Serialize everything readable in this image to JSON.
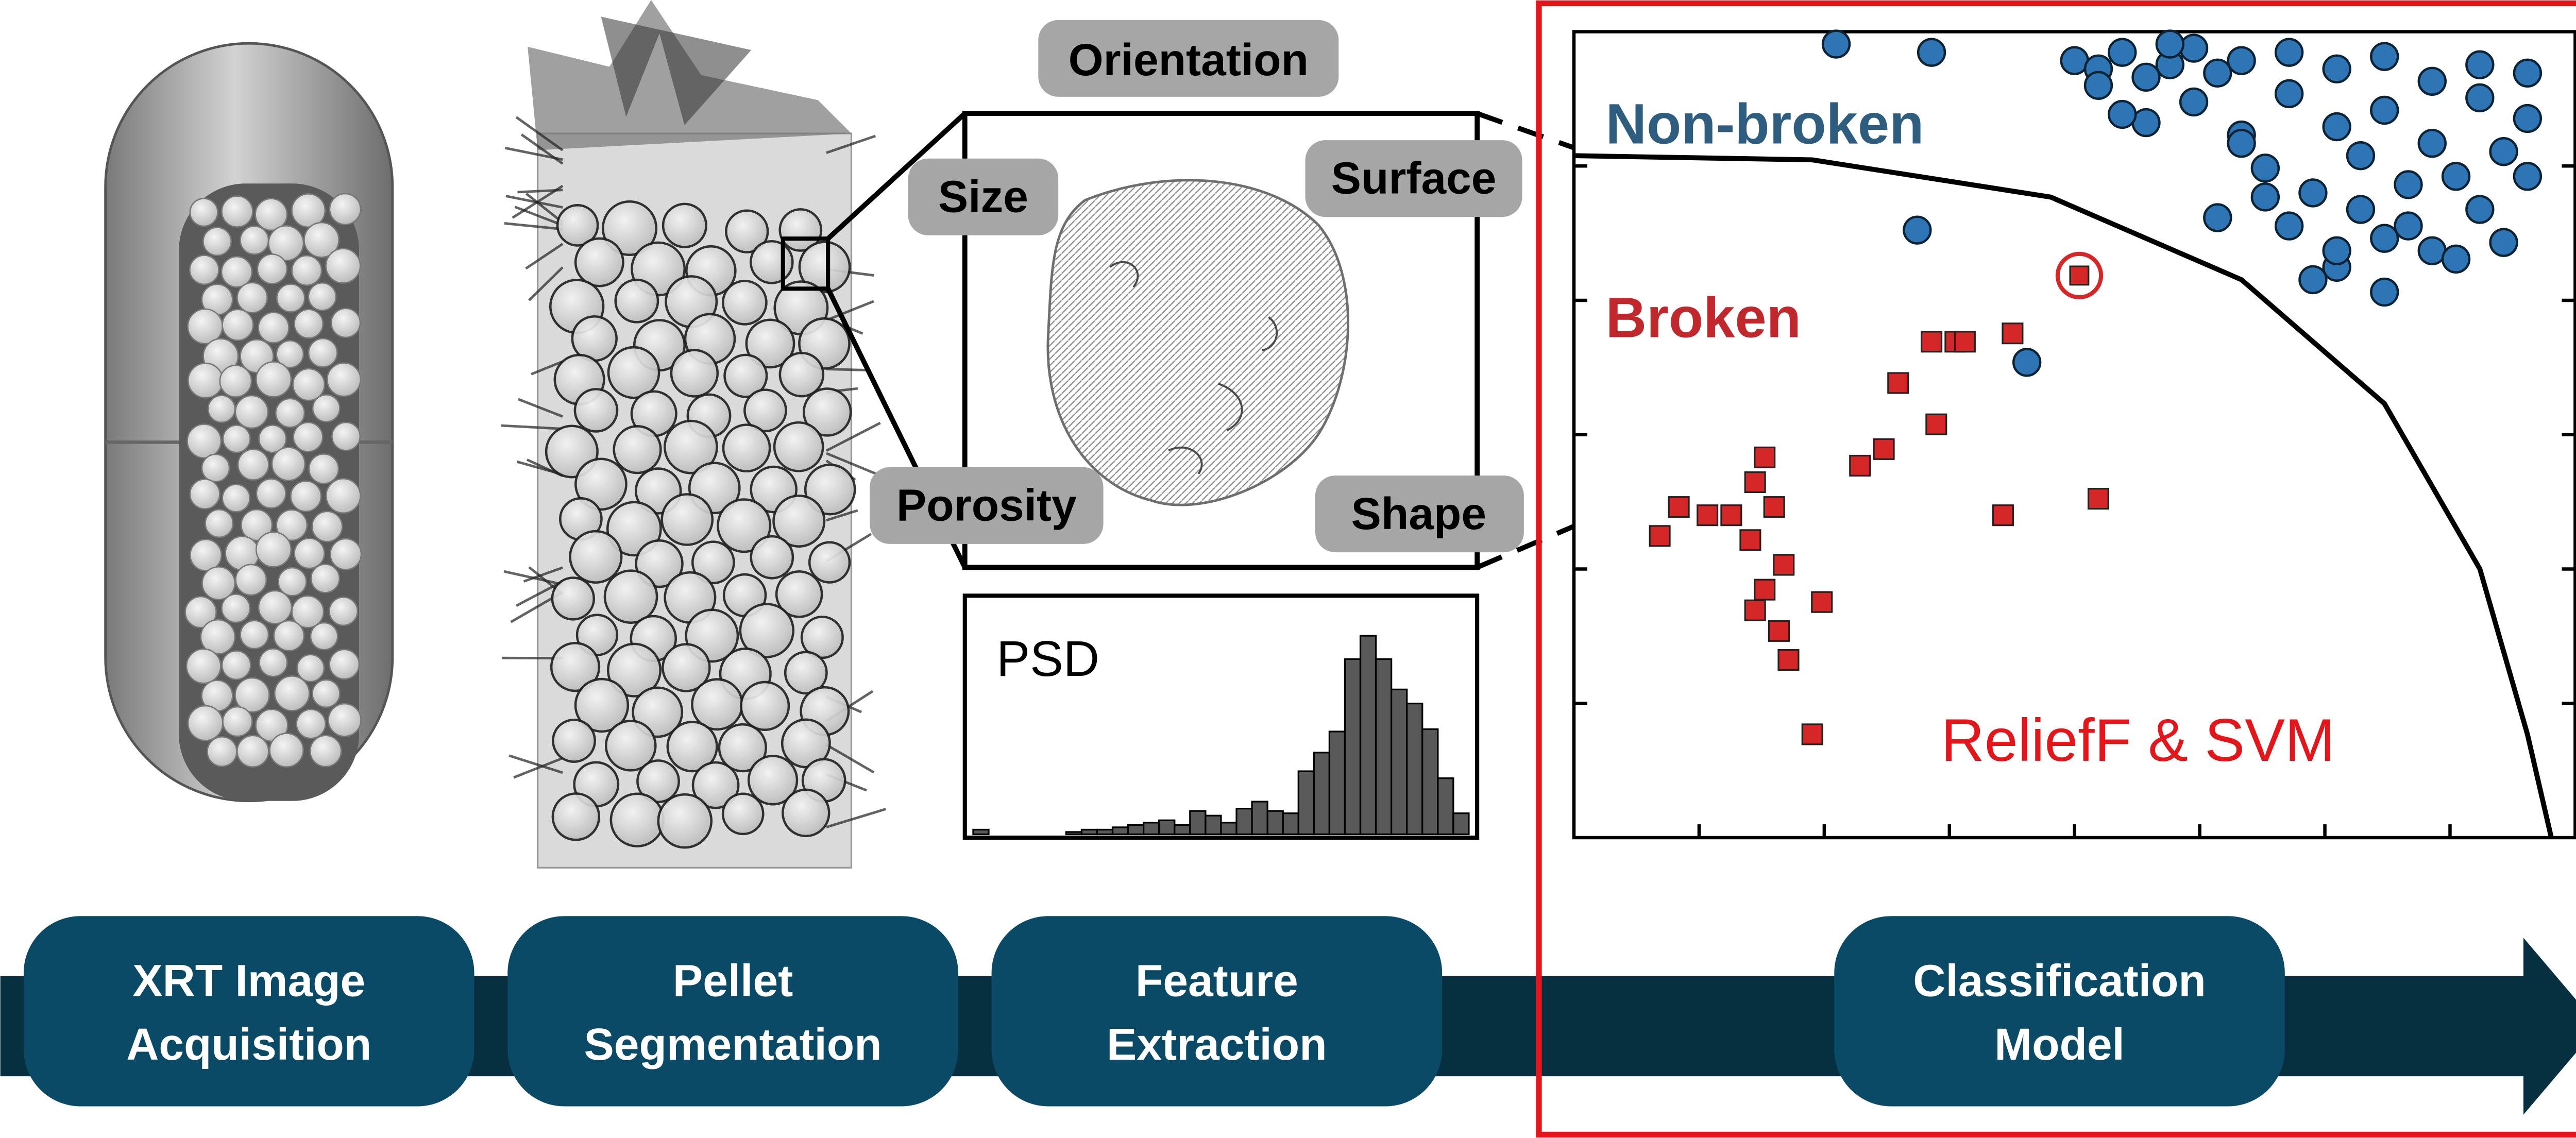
{
  "pipeline": {
    "steps": [
      {
        "line1": "XRT Image",
        "line2": "Acquisition"
      },
      {
        "line1": "Pellet",
        "line2": "Segmentation"
      },
      {
        "line1": "Feature",
        "line2": "Extraction"
      },
      {
        "line1": "Classification",
        "line2": "Model"
      }
    ],
    "colors": {
      "step_box": "#0b4a66",
      "arrow": "#062f3f",
      "box_text": "#ffffff"
    }
  },
  "features": {
    "labels": [
      "Orientation",
      "Size",
      "Surface",
      "Porosity",
      "Shape"
    ],
    "label_bg": "#a6a6a6",
    "psd_label": "PSD"
  },
  "classification": {
    "nonbroken_label": "Non-broken",
    "broken_label": "Broken",
    "method_label": "ReliefF & SVM",
    "colors": {
      "nonbroken": "#2e75b6",
      "broken": "#d62728",
      "frame": "#e3161b",
      "label_blue": "#2f5d80",
      "label_red": "#c0282d"
    }
  },
  "chart_data": [
    {
      "type": "bar",
      "title": "PSD",
      "values": [
        0.02,
        0,
        0,
        0,
        0,
        0,
        0.01,
        0.02,
        0.02,
        0.03,
        0.04,
        0.05,
        0.06,
        0.04,
        0.1,
        0.08,
        0.05,
        0.11,
        0.14,
        0.1,
        0.09,
        0.27,
        0.35,
        0.44,
        0.75,
        0.85,
        0.75,
        0.62,
        0.56,
        0.45,
        0.24,
        0.09
      ]
    },
    {
      "type": "scatter",
      "series": [
        {
          "name": "Non-broken",
          "marker": "circle",
          "x": [
            1.05,
            1.1,
            1.15,
            1.2,
            1.25,
            1.3,
            1.35,
            1.4,
            1.5,
            1.6,
            1.7,
            1.8,
            1.9,
            2.0,
            1.3,
            1.5,
            1.7,
            1.9,
            1.2,
            1.4,
            1.6,
            1.8,
            2.0,
            1.1,
            1.45,
            1.65,
            1.85,
            1.25,
            1.55,
            1.75,
            1.95,
            1.35,
            1.15,
            1.5,
            1.7,
            1.9,
            1.6,
            1.8,
            1.45,
            2.0,
            0.55,
            0.75,
            1.55,
            1.7,
            1.6,
            1.85,
            1.75,
            1.95,
            1.4,
            1.65,
            0.72,
            0.95
          ],
          "y": [
            1.88,
            1.86,
            1.9,
            1.84,
            1.87,
            1.91,
            1.85,
            1.88,
            1.9,
            1.86,
            1.89,
            1.83,
            1.87,
            1.85,
            1.78,
            1.8,
            1.76,
            1.79,
            1.73,
            1.7,
            1.72,
            1.68,
            1.74,
            1.82,
            1.62,
            1.65,
            1.6,
            1.92,
            1.56,
            1.58,
            1.66,
            1.5,
            1.75,
            1.48,
            1.45,
            1.52,
            1.38,
            1.42,
            1.55,
            1.6,
            1.92,
            1.9,
            1.35,
            1.32,
            1.42,
            1.4,
            1.48,
            1.44,
            1.68,
            1.52,
            1.47,
            1.15
          ],
          "color": "#2e75b6"
        },
        {
          "name": "Broken",
          "marker": "square",
          "x": [
            0.18,
            0.22,
            0.28,
            0.33,
            0.38,
            0.4,
            0.37,
            0.42,
            0.4,
            0.44,
            0.38,
            0.52,
            0.45,
            0.5,
            0.6,
            0.65,
            0.68,
            0.76,
            0.8,
            0.75,
            0.82,
            0.9,
            0.92,
            1.1,
            0.43
          ],
          "y": [
            0.73,
            0.8,
            0.78,
            0.78,
            0.86,
            0.92,
            0.72,
            0.8,
            0.6,
            0.66,
            0.55,
            0.57,
            0.43,
            0.25,
            0.9,
            0.94,
            1.1,
            1.0,
            1.2,
            1.2,
            1.2,
            0.78,
            1.22,
            0.82,
            0.5
          ],
          "color": "#d62728"
        }
      ],
      "decision_boundary": {
        "x": [
          0,
          0.5,
          1.0,
          1.4,
          1.7,
          1.9,
          2.0,
          2.05
        ],
        "y": [
          1.65,
          1.64,
          1.55,
          1.35,
          1.05,
          0.65,
          0.25,
          0
        ]
      },
      "highlighted_point": {
        "x": 1.06,
        "y": 1.36
      },
      "xlim": [
        0,
        2.1
      ],
      "ylim": [
        0,
        1.95
      ],
      "annotations": [
        "Non-broken",
        "Broken",
        "ReliefF & SVM"
      ]
    }
  ]
}
